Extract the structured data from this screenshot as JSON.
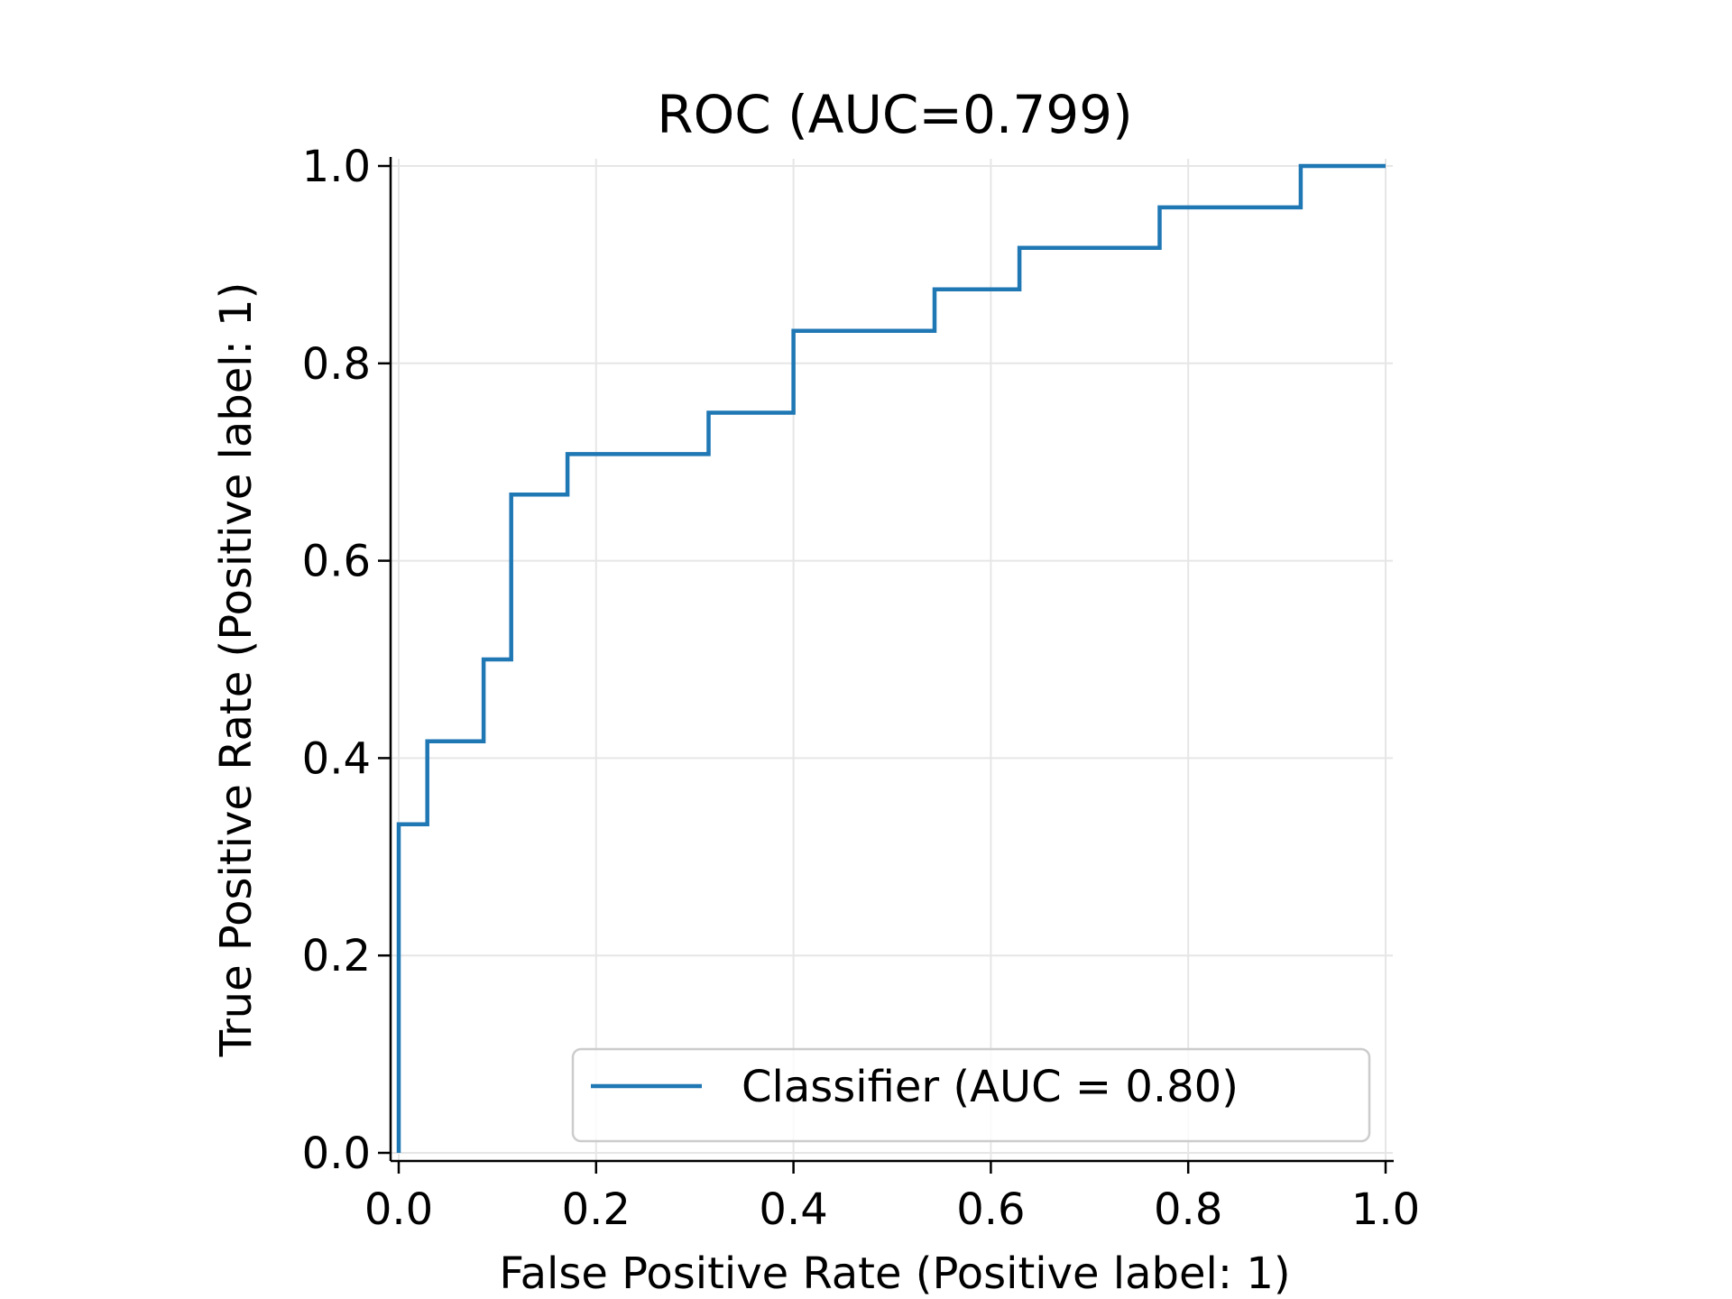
{
  "chart_data": {
    "type": "line",
    "title": "ROC (AUC=0.799)",
    "xlabel": "False Positive Rate (Positive label: 1)",
    "ylabel": "True Positive Rate (Positive label: 1)",
    "xlim": [
      0,
      1
    ],
    "ylim": [
      0,
      1
    ],
    "xticks": [
      "0.0",
      "0.2",
      "0.4",
      "0.6",
      "0.8",
      "1.0"
    ],
    "yticks": [
      "0.0",
      "0.2",
      "0.4",
      "0.6",
      "0.8",
      "1.0"
    ],
    "grid": true,
    "legend_position": "lower right",
    "series": [
      {
        "name": "Classifier (AUC = 0.80)",
        "color": "#1f77b4",
        "step": true,
        "x": [
          0.0,
          0.0,
          0.029,
          0.029,
          0.086,
          0.086,
          0.114,
          0.114,
          0.171,
          0.171,
          0.314,
          0.314,
          0.4,
          0.4,
          0.543,
          0.543,
          0.629,
          0.629,
          0.771,
          0.771,
          0.914,
          0.914,
          1.0
        ],
        "y": [
          0.0,
          0.333,
          0.333,
          0.417,
          0.417,
          0.5,
          0.5,
          0.667,
          0.667,
          0.708,
          0.708,
          0.75,
          0.75,
          0.833,
          0.833,
          0.875,
          0.875,
          0.917,
          0.917,
          0.958,
          0.958,
          1.0,
          1.0
        ]
      }
    ]
  }
}
